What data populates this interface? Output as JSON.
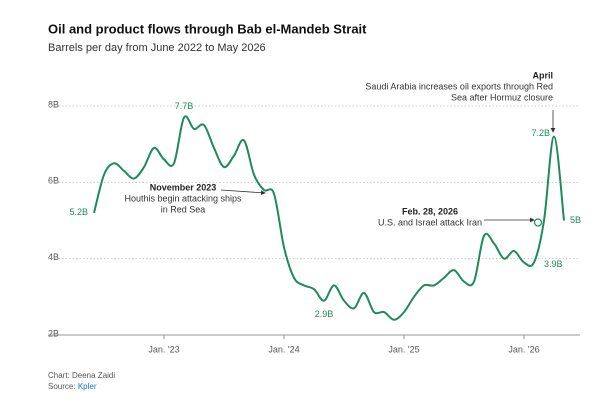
{
  "chart_data": {
    "type": "line",
    "title": "Oil and product flows through Bab el-Mandeb Strait",
    "subtitle": "Barrels per day from June 2022 to May 2026",
    "categories": [
      null,
      null,
      null,
      null,
      null,
      null,
      null,
      "Jan. '23",
      null,
      null,
      null,
      null,
      null,
      null,
      null,
      null,
      null,
      null,
      null,
      "Jan. '24",
      null,
      null,
      null,
      null,
      null,
      null,
      null,
      null,
      null,
      null,
      null,
      "Jan. '25",
      null,
      null,
      null,
      null,
      null,
      null,
      null,
      null,
      null,
      null,
      null,
      "Jan. '26",
      null,
      null,
      null,
      null
    ],
    "series": [
      {
        "name": "Barrels per day",
        "color": "#1f8a5b",
        "values": [
          5.2,
          6.2,
          6.5,
          6.3,
          6.1,
          6.4,
          6.9,
          6.6,
          6.5,
          7.7,
          7.4,
          7.5,
          6.9,
          6.4,
          6.7,
          7.1,
          6.2,
          5.8,
          5.7,
          4.3,
          3.5,
          3.3,
          3.2,
          2.9,
          3.3,
          2.9,
          2.7,
          3.1,
          2.6,
          2.6,
          2.4,
          2.6,
          3.0,
          3.3,
          3.3,
          3.5,
          3.7,
          3.4,
          3.4,
          4.6,
          4.4,
          4.0,
          4.2,
          3.9,
          3.9,
          5.0,
          7.2,
          5.0
        ],
        "value_labels": [
          "5.2B",
          null,
          null,
          null,
          null,
          null,
          null,
          null,
          null,
          "7.7B",
          null,
          null,
          null,
          null,
          null,
          null,
          null,
          null,
          null,
          null,
          null,
          null,
          null,
          "2.9B",
          null,
          null,
          null,
          null,
          null,
          null,
          null,
          null,
          null,
          null,
          null,
          null,
          null,
          null,
          null,
          null,
          null,
          null,
          null,
          null,
          "3.9B",
          null,
          "7.2B",
          "5B"
        ]
      }
    ],
    "ylim": [
      2,
      8
    ],
    "yticks": [
      {
        "value": 2,
        "label": "2B"
      },
      {
        "value": 4,
        "label": "4B"
      },
      {
        "value": 6,
        "label": "6B"
      },
      {
        "value": 8,
        "label": "8B"
      }
    ],
    "grid": true,
    "annotations": [
      {
        "label": "November 2023",
        "lines": [
          "Houthis begin attacking ships",
          "in Red Sea"
        ]
      },
      {
        "label": "Feb. 28, 2026",
        "lines": [
          "U.S. and Israel attack Iran"
        ]
      },
      {
        "label": "April",
        "lines": [
          "Saudi Arabia increases oil exports through Red",
          "Sea after Hormuz closure"
        ]
      }
    ],
    "credit": "Chart: Deena Zaidi",
    "source_label": "Source:",
    "source": "Kpler"
  }
}
